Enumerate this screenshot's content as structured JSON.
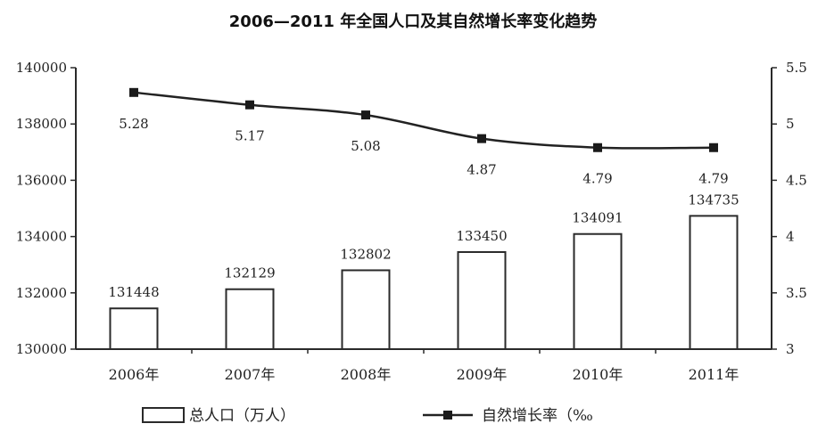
{
  "chart_data": {
    "type": "bar",
    "title": "2006—2011 年全国人口及其自然增长率变化趋势",
    "categories": [
      "2006年",
      "2007年",
      "2008年",
      "2009年",
      "2010年",
      "2011年"
    ],
    "series": [
      {
        "name": "总人口（万人）",
        "type": "bar",
        "axis": "left",
        "values": [
          131448,
          132129,
          132802,
          133450,
          134091,
          134735
        ],
        "labels": [
          "131448",
          "132129",
          "132802",
          "133450",
          "134091",
          "134735"
        ]
      },
      {
        "name": "自然增长率（‰",
        "type": "line",
        "axis": "right",
        "values": [
          5.28,
          5.17,
          5.08,
          4.87,
          4.79,
          4.79
        ],
        "labels": [
          "5.28",
          "5.17",
          "5.08",
          "4.87",
          "4.79",
          "4.79"
        ]
      }
    ],
    "y_left": {
      "ylim": [
        130000,
        140000
      ],
      "ticks": [
        130000,
        132000,
        134000,
        136000,
        138000,
        140000
      ],
      "tick_labels": [
        "130000",
        "132000",
        "134000",
        "136000",
        "138000",
        "140000"
      ]
    },
    "y_right": {
      "ylim": [
        3,
        5.5
      ],
      "ticks": [
        3,
        3.5,
        4,
        4.5,
        5,
        5.5
      ],
      "tick_labels": [
        "3",
        "3.5",
        "4",
        "4.5",
        "5",
        "5.5"
      ]
    },
    "grid": false,
    "legend_position": "bottom"
  }
}
